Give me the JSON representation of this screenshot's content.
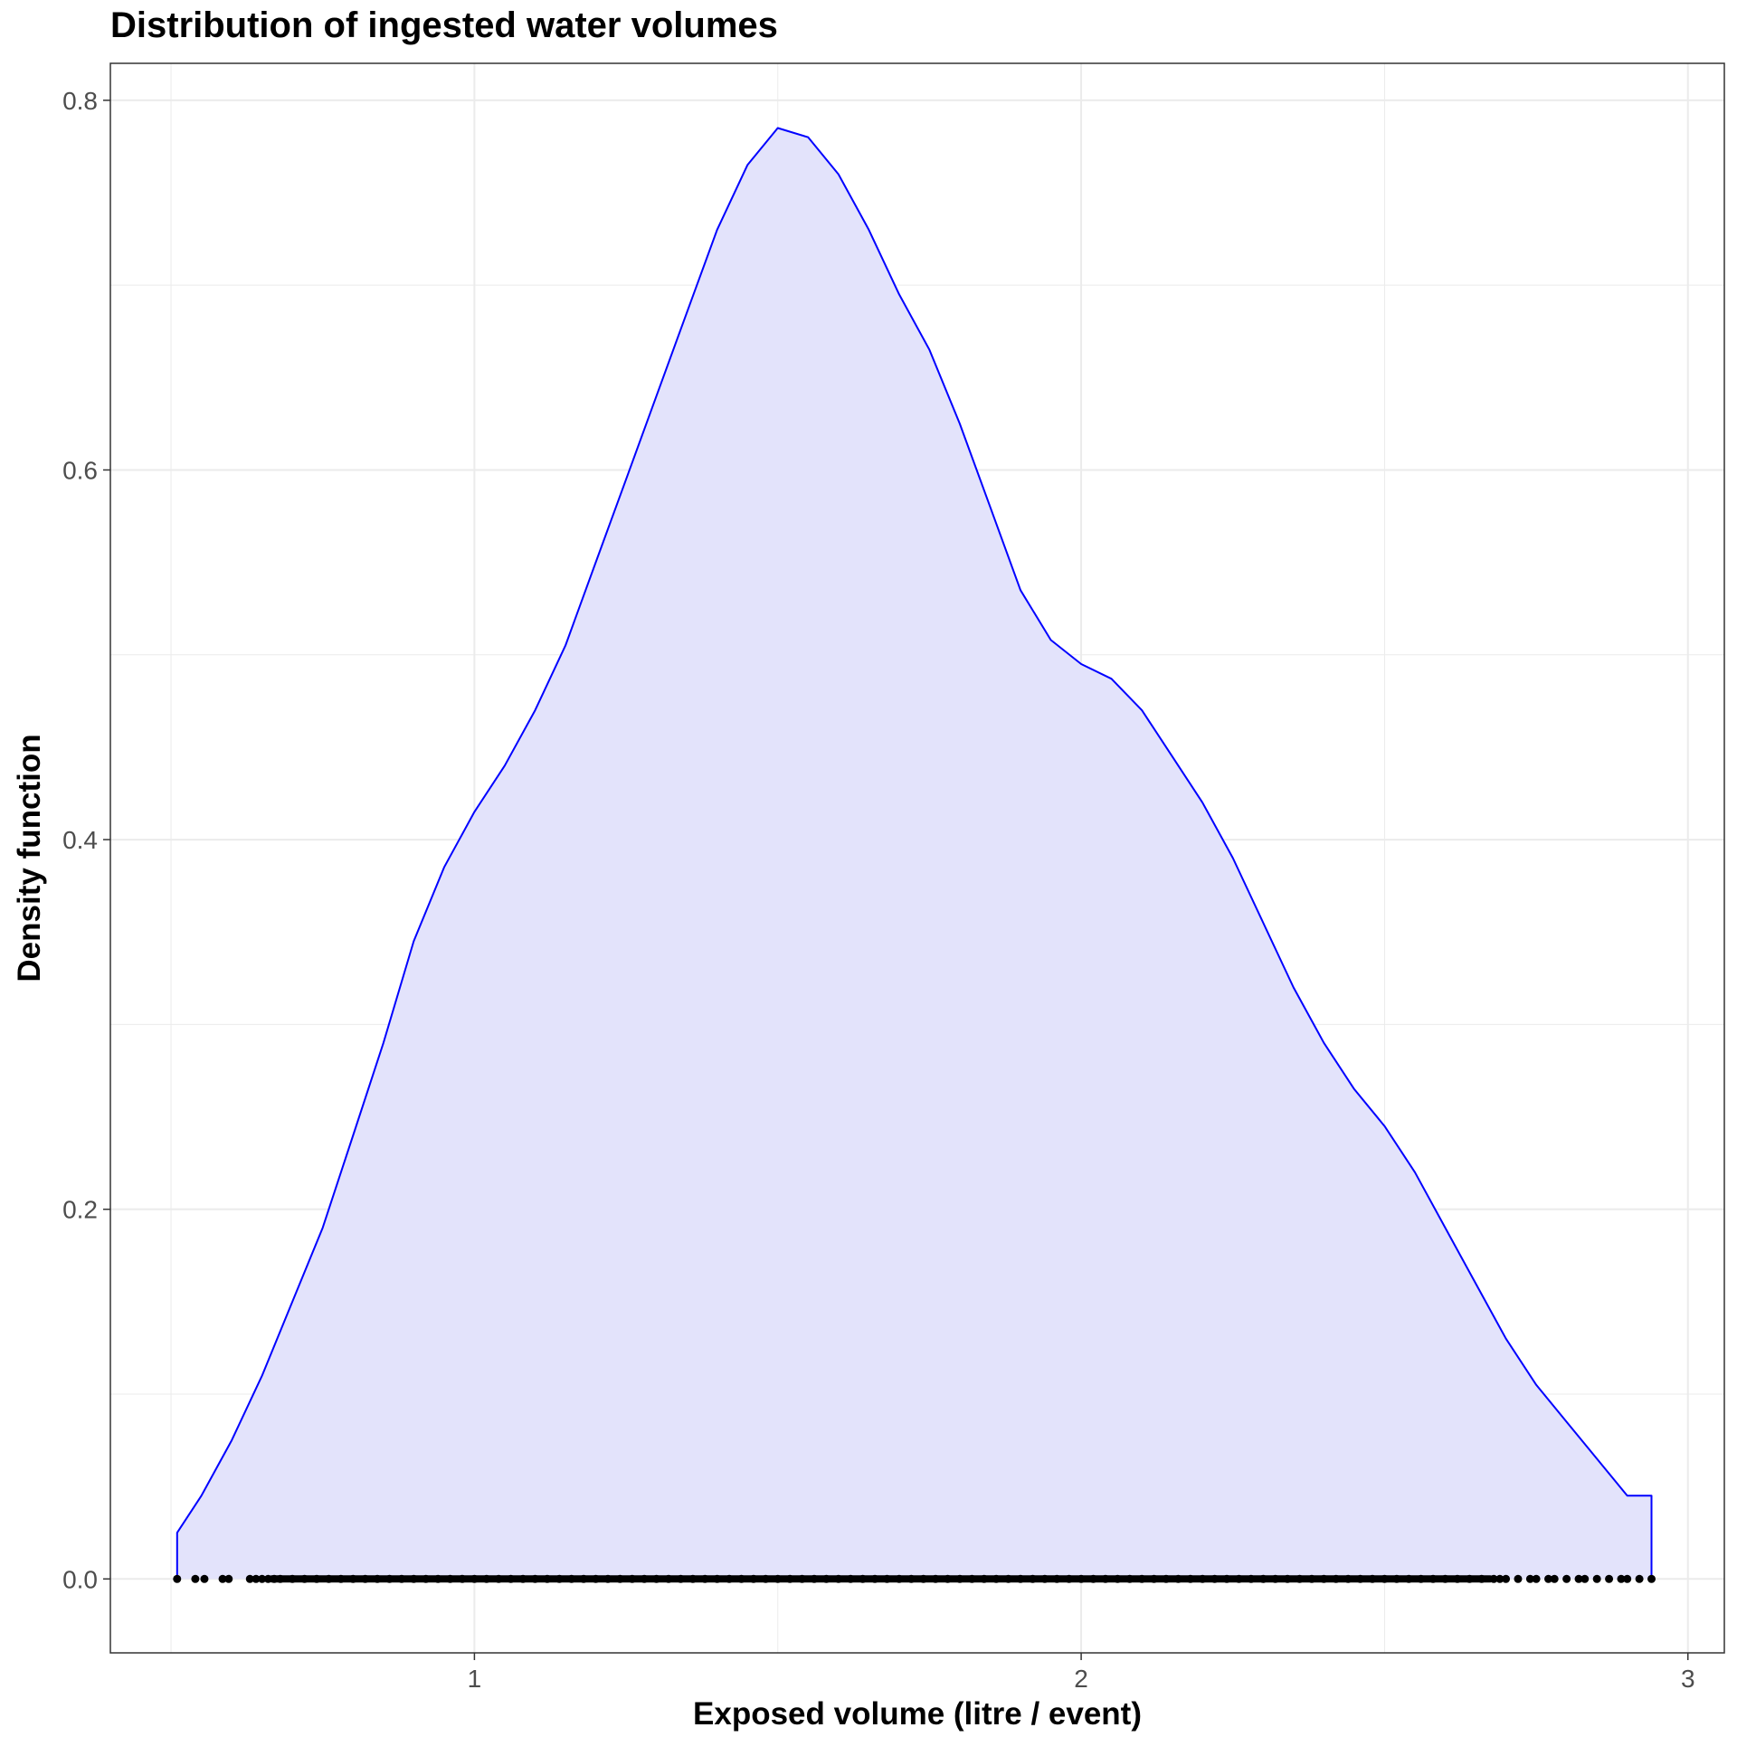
{
  "chart_data": {
    "type": "area",
    "title": "Distribution of ingested water volumes",
    "xlabel": "Exposed volume (litre / event)",
    "ylabel": "Density function",
    "xlim": [
      0.4,
      3.06
    ],
    "ylim": [
      -0.04,
      0.82
    ],
    "x_ticks": [
      1,
      2,
      3
    ],
    "x_tick_labels": [
      "1",
      "2",
      "3"
    ],
    "y_ticks": [
      0.0,
      0.2,
      0.4,
      0.6,
      0.8
    ],
    "y_tick_labels": [
      "0.0",
      "0.2",
      "0.4",
      "0.6",
      "0.8"
    ],
    "grid": true,
    "colors": {
      "line": "#0000ff",
      "fill": "#e3e3fb",
      "points": "#000000",
      "grid": "#ebebeb",
      "frame": "#333333"
    },
    "density": {
      "x": [
        0.51,
        0.51,
        0.55,
        0.6,
        0.65,
        0.7,
        0.75,
        0.8,
        0.85,
        0.9,
        0.95,
        1.0,
        1.05,
        1.1,
        1.15,
        1.2,
        1.25,
        1.3,
        1.35,
        1.4,
        1.45,
        1.5,
        1.55,
        1.6,
        1.65,
        1.7,
        1.75,
        1.8,
        1.85,
        1.9,
        1.95,
        2.0,
        2.05,
        2.1,
        2.15,
        2.2,
        2.25,
        2.3,
        2.35,
        2.4,
        2.45,
        2.5,
        2.55,
        2.6,
        2.65,
        2.7,
        2.75,
        2.8,
        2.85,
        2.9,
        2.94,
        2.94
      ],
      "y": [
        0.0,
        0.025,
        0.045,
        0.075,
        0.11,
        0.15,
        0.19,
        0.24,
        0.29,
        0.345,
        0.385,
        0.415,
        0.44,
        0.47,
        0.505,
        0.55,
        0.595,
        0.64,
        0.685,
        0.73,
        0.765,
        0.785,
        0.78,
        0.76,
        0.73,
        0.695,
        0.665,
        0.625,
        0.58,
        0.535,
        0.508,
        0.495,
        0.487,
        0.47,
        0.445,
        0.42,
        0.39,
        0.355,
        0.32,
        0.29,
        0.265,
        0.245,
        0.22,
        0.19,
        0.16,
        0.13,
        0.105,
        0.085,
        0.065,
        0.045,
        0.045,
        0.0
      ]
    },
    "rug_x": [
      0.51,
      0.54,
      0.555,
      0.585,
      0.595,
      0.63,
      0.64,
      0.65,
      0.66,
      0.67,
      0.68,
      0.7,
      0.72,
      0.74,
      0.76,
      0.78,
      0.8,
      0.82,
      0.84,
      0.86,
      0.88,
      0.9,
      0.92,
      0.94,
      0.96,
      0.98,
      1.0,
      1.02,
      1.04,
      1.06,
      1.08,
      1.1,
      1.12,
      1.14,
      1.16,
      1.18,
      1.2,
      1.22,
      1.24,
      1.26,
      1.28,
      1.3,
      1.32,
      1.34,
      1.36,
      1.38,
      1.4,
      1.42,
      1.44,
      1.46,
      1.48,
      1.5,
      1.52,
      1.54,
      1.56,
      1.58,
      1.6,
      1.62,
      1.64,
      1.66,
      1.68,
      1.7,
      1.72,
      1.74,
      1.76,
      1.78,
      1.8,
      1.82,
      1.84,
      1.86,
      1.88,
      1.9,
      1.92,
      1.94,
      1.96,
      1.98,
      2.0,
      2.02,
      2.04,
      2.06,
      2.08,
      2.1,
      2.12,
      2.14,
      2.16,
      2.18,
      2.2,
      2.22,
      2.24,
      2.26,
      2.28,
      2.3,
      2.32,
      2.34,
      2.36,
      2.38,
      2.4,
      2.42,
      2.44,
      2.46,
      2.48,
      2.5,
      2.52,
      2.54,
      2.56,
      2.58,
      2.6,
      2.62,
      2.64,
      2.66,
      2.68,
      2.69,
      2.7,
      2.72,
      2.74,
      2.75,
      2.77,
      2.78,
      2.8,
      2.82,
      2.83,
      2.85,
      2.87,
      2.89,
      2.9,
      2.92,
      2.94
    ]
  }
}
